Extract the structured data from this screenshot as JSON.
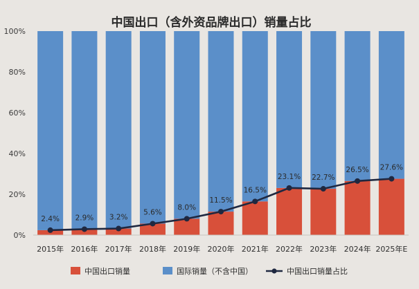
{
  "chart_data": {
    "type": "bar",
    "stacked": true,
    "title": "中国出口（含外资品牌出口）销量占比",
    "categories": [
      "2015年",
      "2016年",
      "2017年",
      "2018年",
      "2019年",
      "2020年",
      "2021年",
      "2022年",
      "2023年",
      "2024年",
      "2025年E"
    ],
    "y_ticks": [
      "0%",
      "20%",
      "40%",
      "60%",
      "80%",
      "100%"
    ],
    "ylim": [
      0,
      100
    ],
    "series": [
      {
        "name": "中国出口销量",
        "kind": "bar",
        "color": "#d8503a",
        "values": [
          2.4,
          2.9,
          3.2,
          5.6,
          8.0,
          11.5,
          16.5,
          23.1,
          22.7,
          26.5,
          27.6
        ]
      },
      {
        "name": "国际销量（不含中国）",
        "kind": "bar",
        "color": "#5b8fc9",
        "values": [
          97.6,
          97.1,
          96.8,
          94.4,
          92.0,
          88.5,
          83.5,
          76.9,
          77.3,
          73.5,
          72.4
        ]
      },
      {
        "name": "中国出口销量占比",
        "kind": "line",
        "color": "#1f2840",
        "values": [
          2.4,
          2.9,
          3.2,
          5.6,
          8.0,
          11.5,
          16.5,
          23.1,
          22.7,
          26.5,
          27.6
        ]
      }
    ],
    "data_labels": [
      "2.4%",
      "2.9%",
      "3.2%",
      "5.6%",
      "8.0%",
      "11.5%",
      "16.5%",
      "23.1%",
      "22.7%",
      "26.5%",
      "27.6%"
    ],
    "grid": false,
    "legend_position": "bottom"
  }
}
